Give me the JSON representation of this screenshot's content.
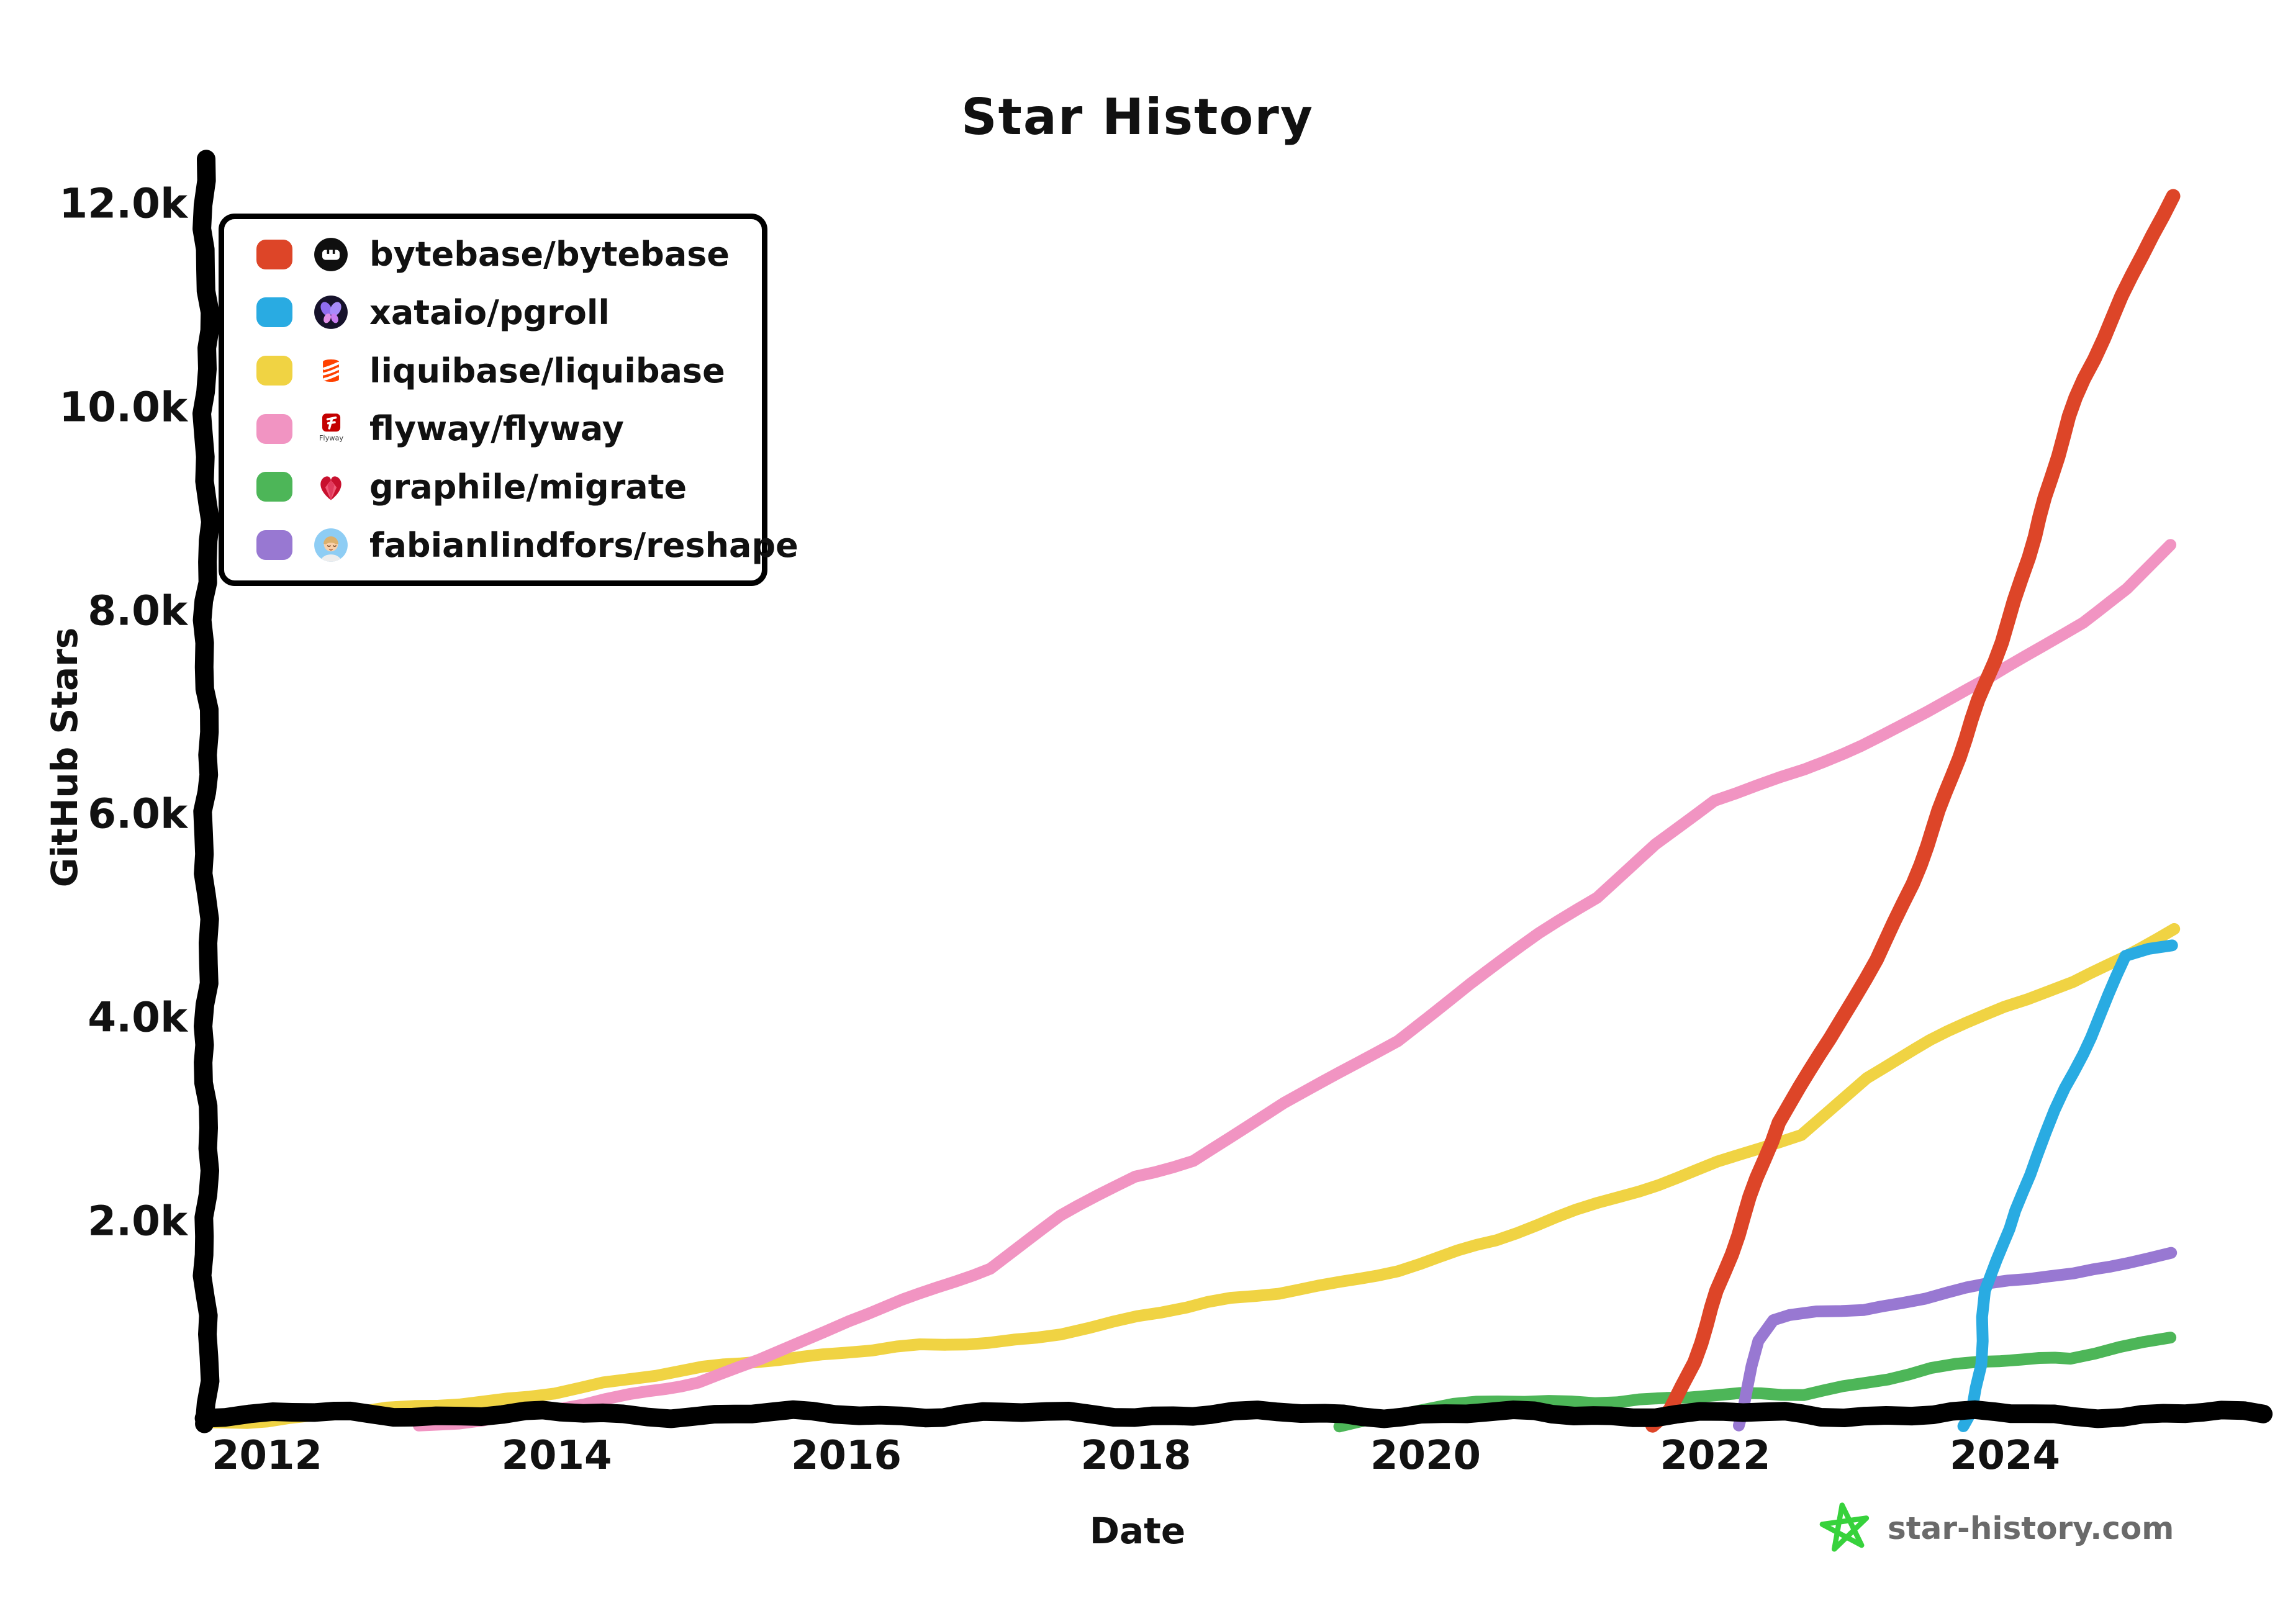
{
  "title": "Star History",
  "y_axis": {
    "label": "GitHub Stars",
    "ticks": [
      "12.0k",
      "10.0k",
      "8.0k",
      "6.0k",
      "4.0k",
      "2.0k"
    ],
    "tick_values": [
      12000,
      10000,
      8000,
      6000,
      4000,
      2000
    ]
  },
  "x_axis": {
    "label": "Date",
    "ticks": [
      "2012",
      "2014",
      "2016",
      "2018",
      "2020",
      "2022",
      "2024"
    ],
    "tick_values": [
      2012,
      2014,
      2016,
      2018,
      2020,
      2022,
      2024
    ]
  },
  "legend": [
    {
      "label": "bytebase/bytebase",
      "color": "#dd4528",
      "icon": "bytebase-logo"
    },
    {
      "label": "xataio/pgroll",
      "color": "#29abe2",
      "icon": "xata-butterfly-logo"
    },
    {
      "label": "liquibase/liquibase",
      "color": "#f0d343",
      "icon": "liquibase-helix-logo"
    },
    {
      "label": "flyway/flyway",
      "color": "#f194c2",
      "icon": "flyway-logo",
      "icon_caption": "Flyway"
    },
    {
      "label": "graphile/migrate",
      "color": "#4db658",
      "icon": "ruby-heart-logo"
    },
    {
      "label": "fabianlindfors/reshape",
      "color": "#9878d2",
      "icon": "person-avatar"
    }
  ],
  "footer": {
    "site": "star-history.com",
    "star_icon_color": "#37d23c"
  },
  "chart_data": {
    "type": "line",
    "title": "Star History",
    "xlabel": "Date",
    "ylabel": "GitHub Stars",
    "x_range": [
      2011.58,
      2025.5
    ],
    "y_range": [
      0,
      12400
    ],
    "grid": false,
    "legend_position": "top-left",
    "series": [
      {
        "name": "liquibase/liquibase",
        "color": "#f0d343",
        "points": [
          [
            2011.58,
            20
          ],
          [
            2012,
            60
          ],
          [
            2012.5,
            100
          ],
          [
            2013,
            160
          ],
          [
            2013.5,
            240
          ],
          [
            2014,
            330
          ],
          [
            2014.5,
            430
          ],
          [
            2015,
            550
          ],
          [
            2015.4,
            640
          ],
          [
            2016,
            720
          ],
          [
            2016.5,
            760
          ],
          [
            2017,
            800
          ],
          [
            2017.5,
            920
          ],
          [
            2018,
            1060
          ],
          [
            2018.5,
            1180
          ],
          [
            2019,
            1300
          ],
          [
            2019.8,
            1530
          ],
          [
            2020.5,
            1800
          ],
          [
            2021.2,
            2170
          ],
          [
            2021.6,
            2380
          ],
          [
            2022,
            2600
          ],
          [
            2022.6,
            2850
          ],
          [
            2023.05,
            3400
          ],
          [
            2023.5,
            3750
          ],
          [
            2024,
            4100
          ],
          [
            2024.47,
            4350
          ],
          [
            2024.8,
            4600
          ],
          [
            2025.15,
            4900
          ]
        ]
      },
      {
        "name": "flyway/flyway",
        "color": "#f194c2",
        "points": [
          [
            2013.05,
            0
          ],
          [
            2013.5,
            60
          ],
          [
            2014,
            140
          ],
          [
            2014.5,
            280
          ],
          [
            2015,
            440
          ],
          [
            2015.4,
            650
          ],
          [
            2016,
            1020
          ],
          [
            2016.5,
            1260
          ],
          [
            2017,
            1530
          ],
          [
            2017.5,
            2050
          ],
          [
            2018,
            2450
          ],
          [
            2018.4,
            2620
          ],
          [
            2019,
            3160
          ],
          [
            2019.8,
            3760
          ],
          [
            2020.3,
            4300
          ],
          [
            2020.8,
            4800
          ],
          [
            2021.2,
            5170
          ],
          [
            2021.6,
            5700
          ],
          [
            2022,
            6140
          ],
          [
            2022.6,
            6450
          ],
          [
            2023,
            6700
          ],
          [
            2023.45,
            7000
          ],
          [
            2023.9,
            7320
          ],
          [
            2024.55,
            7870
          ],
          [
            2024.85,
            8200
          ],
          [
            2025.15,
            8630
          ]
        ]
      },
      {
        "name": "graphile/migrate",
        "color": "#4db658",
        "points": [
          [
            2019.4,
            0
          ],
          [
            2019.6,
            60
          ],
          [
            2019.9,
            130
          ],
          [
            2020.2,
            180
          ],
          [
            2020.5,
            215
          ],
          [
            2021,
            235
          ],
          [
            2021.5,
            252
          ],
          [
            2022,
            272
          ],
          [
            2022.6,
            305
          ],
          [
            2023.05,
            430
          ],
          [
            2023.5,
            555
          ],
          [
            2023.8,
            600
          ],
          [
            2024.1,
            625
          ],
          [
            2024.47,
            655
          ],
          [
            2024.8,
            790
          ],
          [
            2025.15,
            865
          ]
        ]
      },
      {
        "name": "fabianlindfors/reshape",
        "color": "#9878d2",
        "points": [
          [
            2022.17,
            0
          ],
          [
            2022.22,
            350
          ],
          [
            2022.28,
            800
          ],
          [
            2022.38,
            1000
          ],
          [
            2022.5,
            1060
          ],
          [
            2022.7,
            1120
          ],
          [
            2023.04,
            1135
          ],
          [
            2023.3,
            1220
          ],
          [
            2023.6,
            1310
          ],
          [
            2024,
            1400
          ],
          [
            2024.47,
            1465
          ],
          [
            2024.75,
            1560
          ],
          [
            2025,
            1660
          ],
          [
            2025.15,
            1710
          ]
        ]
      },
      {
        "name": "bytebase/bytebase",
        "color": "#dd4528",
        "points": [
          [
            2021.58,
            0
          ],
          [
            2021.7,
            150
          ],
          [
            2021.85,
            600
          ],
          [
            2022,
            1300
          ],
          [
            2022.2,
            2050
          ],
          [
            2022.45,
            3000
          ],
          [
            2022.6,
            3350
          ],
          [
            2022.8,
            3800
          ],
          [
            2023.1,
            4560
          ],
          [
            2023.35,
            5300
          ],
          [
            2023.6,
            6200
          ],
          [
            2023.88,
            7320
          ],
          [
            2024.1,
            8300
          ],
          [
            2024.33,
            9300
          ],
          [
            2024.55,
            10300
          ],
          [
            2024.8,
            11100
          ],
          [
            2025,
            11700
          ],
          [
            2025.15,
            12080
          ]
        ]
      },
      {
        "name": "xataio/pgroll",
        "color": "#29abe2",
        "points": [
          [
            2023.7,
            0
          ],
          [
            2023.76,
            150
          ],
          [
            2023.82,
            600
          ],
          [
            2023.87,
            1320
          ],
          [
            2023.95,
            1600
          ],
          [
            2024.05,
            1900
          ],
          [
            2024.21,
            2630
          ],
          [
            2024.4,
            3300
          ],
          [
            2024.58,
            3830
          ],
          [
            2024.72,
            4250
          ],
          [
            2024.84,
            4620
          ],
          [
            2025,
            4700
          ],
          [
            2025.15,
            4740
          ]
        ]
      }
    ]
  }
}
